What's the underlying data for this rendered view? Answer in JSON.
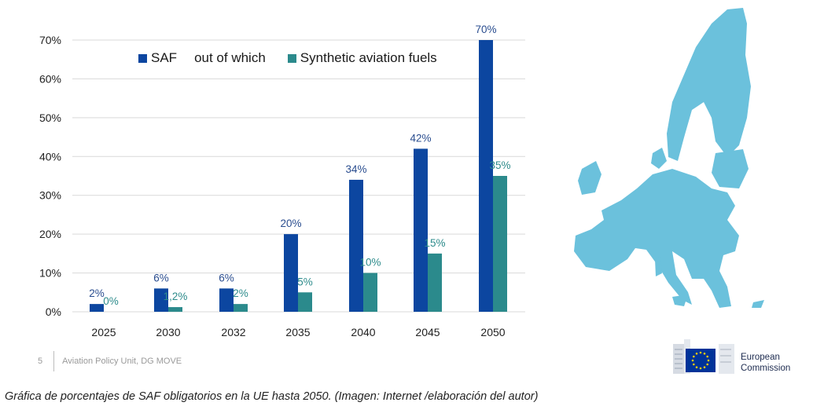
{
  "chart_data": {
    "type": "bar",
    "categories": [
      "2025",
      "2030",
      "2032",
      "2035",
      "2040",
      "2045",
      "2050"
    ],
    "series": [
      {
        "name": "SAF",
        "values": [
          2,
          6,
          6,
          20,
          34,
          42,
          70
        ],
        "labels": [
          "2%",
          "6%",
          "6%",
          "20%",
          "34%",
          "42%",
          "70%"
        ],
        "color": "#0c46a0"
      },
      {
        "name": "Synthetic aviation fuels",
        "values": [
          0,
          1.2,
          2,
          5,
          10,
          15,
          35
        ],
        "labels": [
          "0%",
          "1,2%",
          "2%",
          "5%",
          "10%",
          "15%",
          "35%"
        ],
        "color": "#2b8a8c"
      }
    ],
    "y_ticks": [
      "0%",
      "10%",
      "20%",
      "30%",
      "40%",
      "50%",
      "60%",
      "70%"
    ],
    "ylim": [
      0,
      70
    ],
    "grid": true,
    "legend_placement": "top",
    "title": "",
    "xlabel": "",
    "ylabel": ""
  },
  "legend": {
    "saf_label": "SAF",
    "connector": "out of which",
    "synthetic_label": "Synthetic aviation fuels"
  },
  "footer": {
    "page_number": "5",
    "source": "Aviation Policy Unit, DG MOVE"
  },
  "logo": {
    "line1": "European",
    "line2": "Commission"
  },
  "caption": "Gráfica de porcentajes de SAF obligatorios en la UE hasta 2050. (Imagen: Internet /elaboración del autor)",
  "colors": {
    "map": "#6bc1dc",
    "grid": "#d9d9d9",
    "label_saf": "#2a4d8f",
    "label_synthetic": "#2e8c8c",
    "eu_blue": "#003399",
    "eu_star": "#ffcc00"
  }
}
